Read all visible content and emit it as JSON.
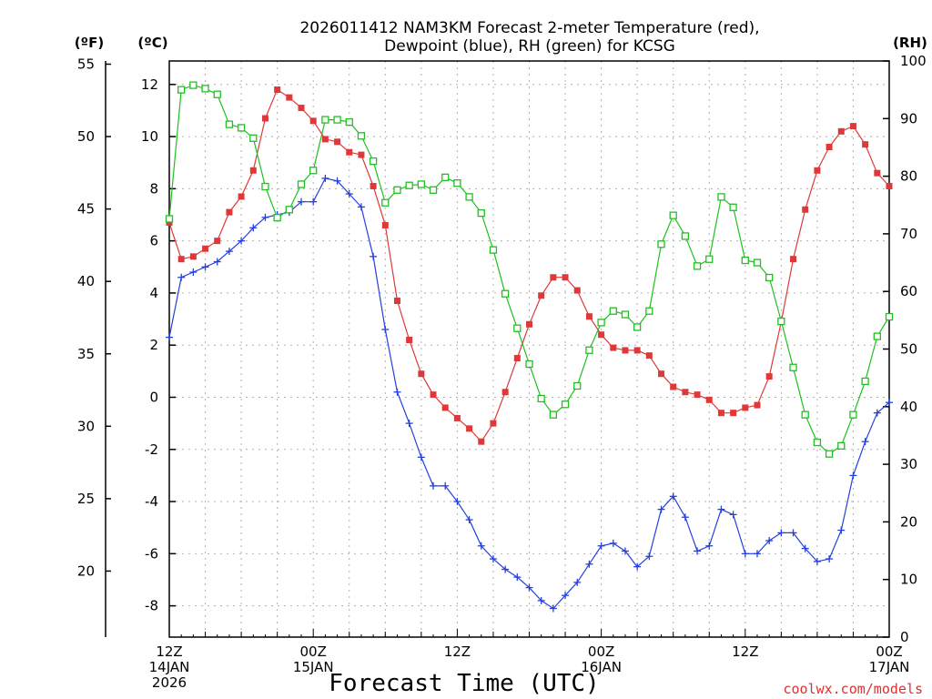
{
  "chart_data": {
    "type": "line",
    "title_line1": "2026011412 NAM3KM Forecast 2-meter Temperature (red),",
    "title_line2": "Dewpoint (blue), RH (green) for KCSG",
    "xlabel": "Forecast Time (UTC)",
    "credit": "coolwx.com/models",
    "units": {
      "fahrenheit": "(ºF)",
      "celsius": "(ºC)",
      "rh": "(RH)"
    },
    "x_hours_range": [
      0,
      60
    ],
    "x_ticks": [
      {
        "hour": 0,
        "lines": [
          "12Z",
          "14JAN",
          "2026"
        ]
      },
      {
        "hour": 12,
        "lines": [
          "00Z",
          "15JAN"
        ]
      },
      {
        "hour": 24,
        "lines": [
          "12Z"
        ]
      },
      {
        "hour": 36,
        "lines": [
          "00Z",
          "16JAN"
        ]
      },
      {
        "hour": 48,
        "lines": [
          "12Z"
        ]
      },
      {
        "hour": 60,
        "lines": [
          "00Z",
          "17JAN"
        ]
      }
    ],
    "celsius_axis": {
      "range": [
        -9.2,
        12.9
      ],
      "ticks": [
        -8,
        -6,
        -4,
        -2,
        0,
        2,
        4,
        6,
        8,
        10,
        12
      ]
    },
    "fahrenheit_axis": {
      "ticks": [
        20,
        25,
        30,
        35,
        40,
        45,
        50,
        55
      ]
    },
    "rh_axis": {
      "range": [
        0,
        100
      ],
      "ticks": [
        0,
        10,
        20,
        30,
        40,
        50,
        60,
        70,
        80,
        90,
        100
      ]
    },
    "grid": true,
    "series": [
      {
        "name": "2-meter Temperature",
        "axis": "celsius",
        "color": "#e03838",
        "marker": "filled-square",
        "values": [
          6.7,
          5.3,
          5.4,
          5.7,
          6.0,
          7.1,
          7.7,
          8.7,
          10.7,
          11.8,
          11.5,
          11.1,
          10.6,
          9.9,
          9.8,
          9.4,
          9.3,
          8.1,
          6.6,
          3.7,
          2.2,
          0.9,
          0.1,
          -0.4,
          -0.8,
          -1.2,
          -1.7,
          -1.0,
          0.2,
          1.5,
          2.8,
          3.9,
          4.6,
          4.6,
          4.1,
          3.1,
          2.4,
          1.9,
          1.8,
          1.8,
          1.6,
          0.9,
          0.4,
          0.2,
          0.1,
          -0.1,
          -0.6,
          -0.6,
          -0.4,
          -0.3,
          0.8,
          2.9,
          5.3,
          7.2,
          8.7,
          9.6,
          10.2,
          10.4,
          9.7,
          8.6,
          8.1
        ]
      },
      {
        "name": "Dewpoint",
        "axis": "celsius",
        "color": "#2440e0",
        "marker": "plus",
        "values": [
          2.3,
          4.6,
          4.8,
          5.0,
          5.2,
          5.6,
          6.0,
          6.5,
          6.9,
          7.0,
          7.1,
          7.5,
          7.5,
          8.4,
          8.3,
          7.8,
          7.3,
          5.4,
          2.6,
          0.2,
          -1.0,
          -2.3,
          -3.4,
          -3.4,
          -4.0,
          -4.7,
          -5.7,
          -6.2,
          -6.6,
          -6.9,
          -7.3,
          -7.8,
          -8.1,
          -7.6,
          -7.1,
          -6.4,
          -5.7,
          -5.6,
          -5.9,
          -6.5,
          -6.1,
          -4.3,
          -3.8,
          -4.6,
          -5.9,
          -5.7,
          -4.3,
          -4.5,
          -6.0,
          -6.0,
          -5.5,
          -5.2,
          -5.2,
          -5.8,
          -6.3,
          -6.2,
          -5.1,
          -3.0,
          -1.7,
          -0.6,
          -0.2
        ]
      },
      {
        "name": "RH",
        "axis": "rh",
        "color": "#20c020",
        "marker": "open-square",
        "values": [
          72.6,
          95,
          95.8,
          95.2,
          94.2,
          89,
          88.4,
          86.6,
          78.2,
          72.8,
          74.2,
          78.6,
          81,
          89.8,
          89.8,
          89.4,
          87,
          82.6,
          75.4,
          77.6,
          78.4,
          78.6,
          77.6,
          79.8,
          78.8,
          76.4,
          73.6,
          67.2,
          59.6,
          53.6,
          47.4,
          41.4,
          38.6,
          40.4,
          43.6,
          49.8,
          54.6,
          56.6,
          56,
          53.8,
          56.6,
          68.2,
          73.2,
          69.6,
          64.4,
          65.6,
          76.4,
          74.6,
          65.4,
          65,
          62.4,
          54.8,
          46.8,
          38.6,
          33.8,
          31.8,
          33.2,
          38.6,
          44.4,
          52.2,
          55.6
        ]
      }
    ]
  }
}
